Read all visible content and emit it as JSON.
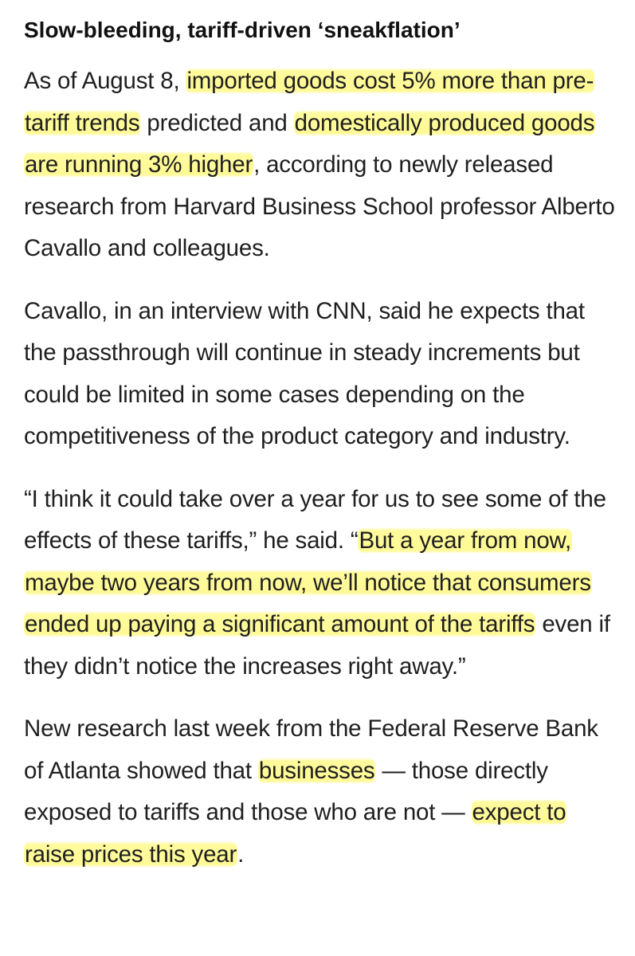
{
  "article": {
    "headline": "Slow-bleeding, tariff-driven ‘sneakflation’",
    "p1": {
      "s1": "As of August 8, ",
      "h1": "imported goods cost 5% more than pre-tariff trends",
      "s2": " predicted and ",
      "h2": "domestically produced goods are running 3% higher",
      "s3": ", according to newly released research from Harvard Business School professor Alberto Cavallo and colleagues."
    },
    "p2": {
      "text": "Cavallo, in an interview with CNN, said he expects that the passthrough will continue in steady increments but could be limited in some cases depending on the competitiveness of the product category and industry."
    },
    "p3": {
      "s1": "“I think it could take over a year for us to see some of the effects of these tariffs,” he said. “",
      "h1": "But a year from now, maybe two years from now, we’ll notice that consumers ended up paying a significant amount of the tariffs",
      "s2": " even if they didn’t notice the increases right away.”"
    },
    "p4": {
      "s1": "New research last week from the Federal Reserve Bank of Atlanta showed that ",
      "h1": "businesses",
      "s2": " — those directly exposed to tariffs and those who are not — ",
      "h2": "expect to raise prices this year",
      "s3": "."
    }
  },
  "colors": {
    "highlight": "#fff88a",
    "text": "#1f1f1f",
    "background": "#ffffff"
  }
}
